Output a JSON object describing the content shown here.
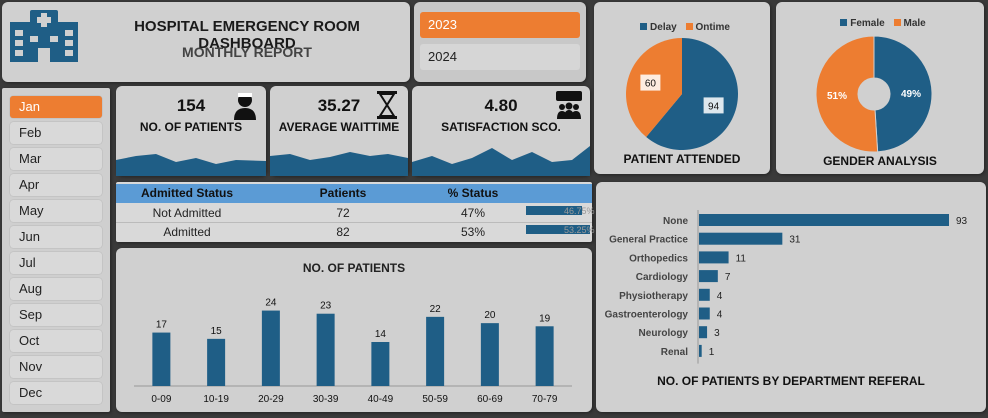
{
  "header": {
    "title": "HOSPITAL EMERGENCY ROOM DASHBOARD",
    "subtitle": "MONTHLY REPORT",
    "logo_icon": "hospital-icon"
  },
  "years": [
    {
      "label": "2023",
      "active": true
    },
    {
      "label": "2024",
      "active": false
    }
  ],
  "months": [
    {
      "label": "Jan",
      "active": true
    },
    {
      "label": "Feb"
    },
    {
      "label": "Mar"
    },
    {
      "label": "Apr"
    },
    {
      "label": "May"
    },
    {
      "label": "Jun"
    },
    {
      "label": "Jul"
    },
    {
      "label": "Aug"
    },
    {
      "label": "Sep"
    },
    {
      "label": "Oct"
    },
    {
      "label": "Nov"
    },
    {
      "label": "Dec"
    }
  ],
  "kpis": {
    "patients": {
      "value": "154",
      "label": "NO. OF PATIENTS",
      "icon": "patient-icon"
    },
    "waittime": {
      "value": "35.27",
      "label": "AVERAGE WAITTIME",
      "icon": "hourglass-icon"
    },
    "satisfaction": {
      "value": "4.80",
      "label": "SATISFACTION SCO.",
      "icon": "feedback-icon"
    }
  },
  "admitted_table": {
    "headers": [
      "Admitted Status",
      "Patients",
      "% Status"
    ],
    "rows": [
      {
        "status": "Not Admitted",
        "patients": "72",
        "pct": "47%",
        "bar_fraction": 0.47,
        "bar_label": "46.75%"
      },
      {
        "status": "Admitted",
        "patients": "82",
        "pct": "53%",
        "bar_fraction": 0.53,
        "bar_label": "53.25%"
      }
    ]
  },
  "colors": {
    "accent": "#ed7d31",
    "primary": "#1f5e86",
    "header_blue": "#5b9bd5"
  },
  "chart_data": [
    {
      "type": "pie",
      "title": "PATIENT ATTENDED",
      "legend": [
        "Delay",
        "Ontime"
      ],
      "slices": [
        {
          "name": "Delay",
          "value": 94,
          "color": "#1f5e86"
        },
        {
          "name": "Ontime",
          "value": 60,
          "color": "#ed7d31"
        }
      ]
    },
    {
      "type": "pie",
      "title": "GENDER ANALYSIS",
      "legend": [
        "Female",
        "Male"
      ],
      "slices": [
        {
          "name": "Female",
          "value": 49,
          "label": "49%",
          "color": "#1f5e86"
        },
        {
          "name": "Male",
          "value": 51,
          "label": "51%",
          "color": "#ed7d31"
        }
      ]
    },
    {
      "type": "bar",
      "title": "NO. OF PATIENTS",
      "categories": [
        "0-09",
        "10-19",
        "20-29",
        "30-39",
        "40-49",
        "50-59",
        "60-69",
        "70-79"
      ],
      "values": [
        17,
        15,
        24,
        23,
        14,
        22,
        20,
        19
      ],
      "ylim": [
        0,
        28
      ]
    },
    {
      "type": "bar",
      "orientation": "horizontal",
      "title": "NO. OF PATIENTS BY DEPARTMENT REFERAL",
      "categories": [
        "None",
        "General Practice",
        "Orthopedics",
        "Cardiology",
        "Physiotherapy",
        "Gastroenterology",
        "Neurology",
        "Renal"
      ],
      "values": [
        93,
        31,
        11,
        7,
        4,
        4,
        3,
        1
      ],
      "xlim": [
        0,
        100
      ]
    }
  ]
}
